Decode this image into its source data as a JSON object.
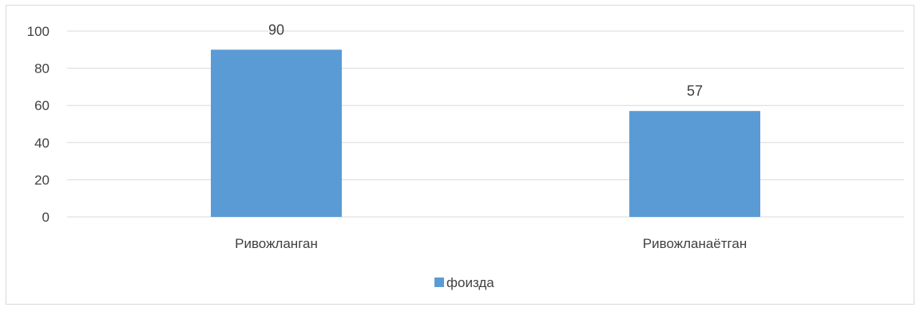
{
  "chart_data": {
    "type": "bar",
    "categories": [
      "Ривожланган",
      "Ривожланаётган"
    ],
    "series": [
      {
        "name": "фоизда",
        "values": [
          90,
          57
        ]
      }
    ],
    "ylim": [
      0,
      100
    ],
    "yticks": [
      0,
      20,
      40,
      60,
      80,
      100
    ],
    "grid": true,
    "legend": "bottom",
    "data_labels": true,
    "colors": {
      "bar": "#5b9bd5",
      "grid": "#d9d9d9",
      "text": "#404040"
    }
  }
}
